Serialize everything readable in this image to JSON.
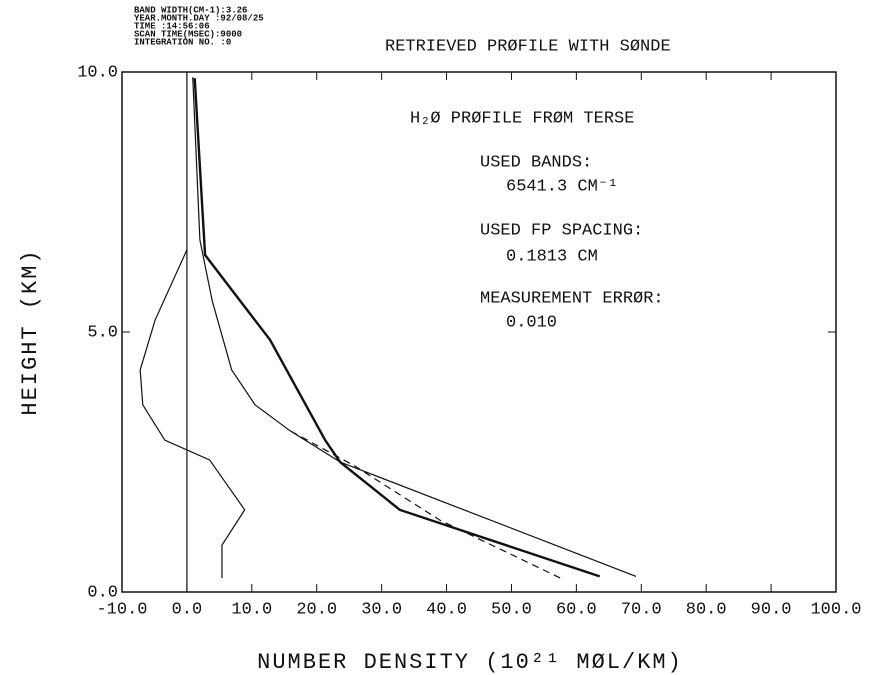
{
  "chart_data": {
    "type": "line",
    "header": [
      "BAND WIDTH(CM-1):3.26",
      "YEAR.MONTH.DAY :92/08/25",
      "TIME :14:56:06",
      "SCAN TIME(MSEC):9000",
      "INTEGRATION NO. :0"
    ],
    "title": "RETRIEVED PRØFILE WITH SØNDE",
    "annotations": [
      "H₂Ø  PRØFILE FRØM TERSE",
      "USED BANDS:",
      "6541.3 CM⁻¹",
      "USED FP SPACING:",
      "0.1813 CM",
      "MEASUREMENT ERRØR:",
      "0.010"
    ],
    "xlabel": "NUMBER DENSITY (10²¹ MØL/KM)",
    "ylabel": "HEIGHT (KM)",
    "xlim": [
      -10,
      100
    ],
    "ylim": [
      0,
      10
    ],
    "xticks": [
      {
        "value": -10,
        "label": "-10.0"
      },
      {
        "value": 0,
        "label": "0.0"
      },
      {
        "value": 10,
        "label": "10.0"
      },
      {
        "value": 20,
        "label": "20.0"
      },
      {
        "value": 30,
        "label": "30.0"
      },
      {
        "value": 40,
        "label": "40.0"
      },
      {
        "value": 50,
        "label": "50.0"
      },
      {
        "value": 60,
        "label": "60.0"
      },
      {
        "value": 70,
        "label": "70.0"
      },
      {
        "value": 80,
        "label": "80.0"
      },
      {
        "value": 90,
        "label": "90.0"
      },
      {
        "value": 100,
        "label": "100.0"
      }
    ],
    "yticks": [
      {
        "value": 0,
        "label": "0.0"
      },
      {
        "value": 5,
        "label": "5.0"
      },
      {
        "value": 10,
        "label": "10.0"
      }
    ],
    "series": [
      {
        "color": "#111",
        "width": 2.4,
        "dash": false,
        "x": [
          63.6,
          32.8,
          23.6,
          21.3,
          12.8,
          2.8,
          1.2
        ],
        "y": [
          0.3,
          1.58,
          2.5,
          2.92,
          4.85,
          6.48,
          9.88
        ]
      },
      {
        "color": "#111",
        "width": 1.2,
        "dash": false,
        "x": [
          69.2,
          23.6,
          15.9,
          10.5,
          6.9,
          3.9,
          2.0,
          0.9
        ],
        "y": [
          0.3,
          2.5,
          3.1,
          3.6,
          4.27,
          5.6,
          6.77,
          9.9
        ]
      },
      {
        "color": "#111",
        "width": 1.2,
        "dash": true,
        "x": [
          57.5,
          39,
          25.9,
          15.9
        ],
        "y": [
          0.27,
          1.38,
          2.42,
          3.1
        ]
      },
      {
        "color": "#111",
        "width": 1.2,
        "dash": false,
        "x": [
          5.4,
          5.4,
          8.9,
          3.5,
          -3.4,
          -6.8,
          -7.2,
          -4.9,
          0
        ],
        "y": [
          0.27,
          0.9,
          1.58,
          2.54,
          2.92,
          3.6,
          4.27,
          5.23,
          6.58
        ]
      }
    ]
  }
}
